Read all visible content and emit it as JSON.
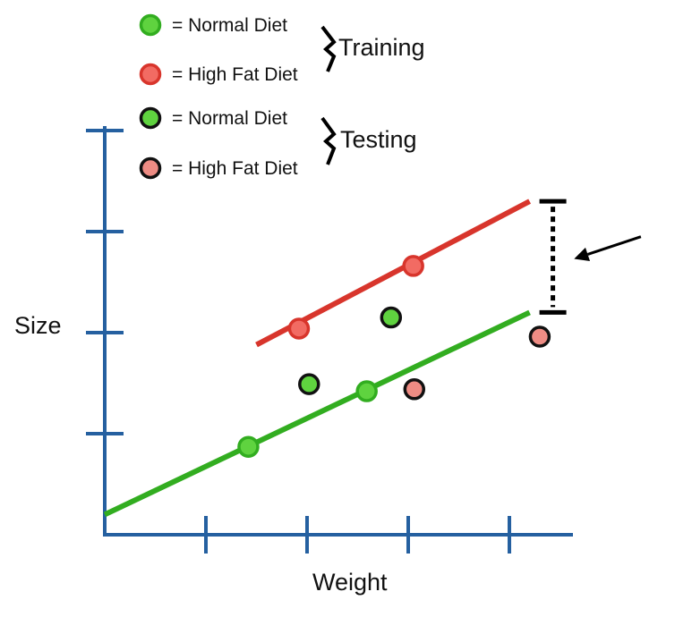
{
  "legend": {
    "training": {
      "label": "Training",
      "items": [
        {
          "label": "= Normal Diet",
          "diet": "normal",
          "set": "training"
        },
        {
          "label": "= High Fat Diet",
          "diet": "highfat",
          "set": "training"
        }
      ]
    },
    "testing": {
      "label": "Testing",
      "items": [
        {
          "label": "= Normal Diet",
          "diet": "normal",
          "set": "testing"
        },
        {
          "label": "= High Fat Diet",
          "diet": "highfat",
          "set": "testing"
        }
      ]
    }
  },
  "axes": {
    "xlabel": "Weight",
    "ylabel": "Size",
    "x_ticks": 4,
    "y_ticks": 4
  },
  "colors": {
    "axis": "#2560a0",
    "normal_line": "#32ad20",
    "normal_fill": "#5fd33f",
    "highfat_line": "#d8352c",
    "highfat_fill": "#f26b63",
    "testing_highfat_fill": "#ee8c84",
    "outline": "#111111"
  },
  "chart_data": {
    "type": "scatter",
    "xlabel": "Weight",
    "ylabel": "Size",
    "xlim": [
      0,
      4.6
    ],
    "ylim": [
      0,
      4
    ],
    "series": [
      {
        "name": "Normal Diet",
        "set": "training",
        "diet": "normal",
        "x": [
          1.42,
          2.59
        ],
        "y": [
          0.87,
          1.42
        ]
      },
      {
        "name": "High Fat Diet",
        "set": "training",
        "diet": "highfat",
        "x": [
          1.92,
          3.05
        ],
        "y": [
          2.04,
          2.66
        ]
      },
      {
        "name": "Normal Diet",
        "set": "testing",
        "diet": "normal",
        "x": [
          2.02,
          2.83
        ],
        "y": [
          1.49,
          2.15
        ]
      },
      {
        "name": "High Fat Diet",
        "set": "testing",
        "diet": "highfat",
        "x": [
          3.06,
          4.3
        ],
        "y": [
          1.44,
          1.96
        ]
      }
    ],
    "fit_lines": [
      {
        "diet": "normal",
        "x": [
          0,
          4.2
        ],
        "y": [
          0.2,
          2.2
        ]
      },
      {
        "diet": "highfat",
        "x": [
          1.5,
          4.2
        ],
        "y": [
          1.88,
          3.3
        ]
      }
    ],
    "gap_marker": {
      "x": 4.43,
      "y_top": 3.3,
      "y_bottom": 2.2
    },
    "arrow": {
      "from": [
        5.3,
        2.95
      ],
      "to": [
        4.64,
        2.73
      ]
    }
  }
}
